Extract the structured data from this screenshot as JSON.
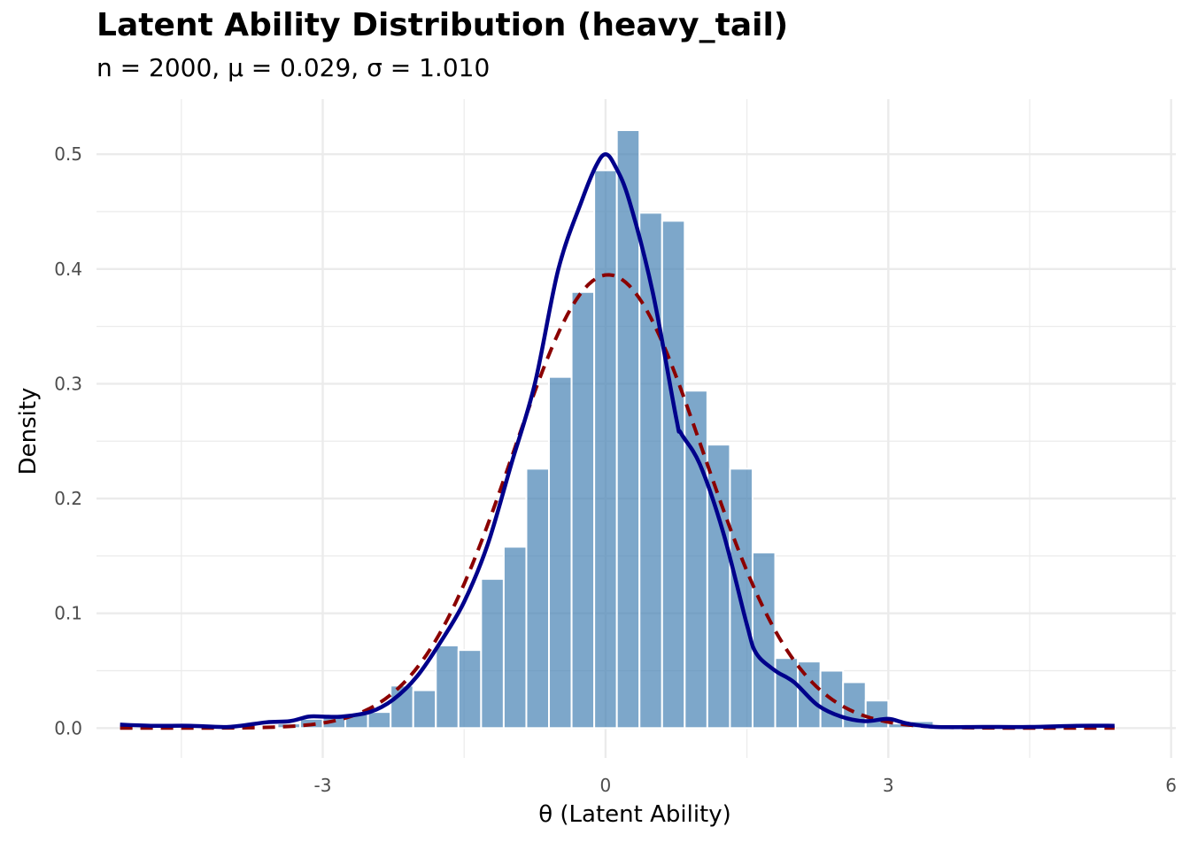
{
  "chart_data": {
    "type": "bar",
    "title": "Latent Ability Distribution (heavy_tail)",
    "subtitle": "n = 2000, μ = 0.029, σ = 1.010",
    "xlabel": "θ (Latent Ability)",
    "ylabel": "Density",
    "xlim": [
      -5.4,
      6.05
    ],
    "ylim": [
      -0.026,
      0.548
    ],
    "x_ticks": [
      -3,
      0,
      3,
      6
    ],
    "y_ticks": [
      0.0,
      0.1,
      0.2,
      0.3,
      0.4,
      0.5
    ],
    "x_tick_labels": [
      "-3",
      "0",
      "3",
      "6"
    ],
    "y_tick_labels": [
      "0.0",
      "0.1",
      "0.2",
      "0.3",
      "0.4",
      "0.5"
    ],
    "grid": true,
    "legend": "none",
    "colors": {
      "bars": "#4682B4",
      "density": "#00008B",
      "normal": "#8B0000",
      "grid": "#ebebeb"
    },
    "histogram": {
      "bin_width": 0.24,
      "bin_centers": [
        -4.8,
        -4.56,
        -4.32,
        -4.08,
        -3.84,
        -3.6,
        -3.36,
        -3.12,
        -2.88,
        -2.64,
        -2.4,
        -2.16,
        -1.92,
        -1.68,
        -1.44,
        -1.2,
        -0.96,
        -0.72,
        -0.48,
        -0.24,
        0.0,
        0.24,
        0.48,
        0.72,
        0.96,
        1.2,
        1.44,
        1.68,
        1.92,
        2.16,
        2.4,
        2.64,
        2.88,
        3.12,
        3.36,
        3.6,
        3.84,
        4.08,
        4.32,
        4.56,
        4.8,
        5.04,
        5.28
      ],
      "density": [
        0.001,
        0.0,
        0.0,
        0.0,
        0.0,
        0.0,
        0.004,
        0.008,
        0.01,
        0.012,
        0.014,
        0.037,
        0.033,
        0.072,
        0.068,
        0.13,
        0.158,
        0.226,
        0.306,
        0.38,
        0.486,
        0.521,
        0.449,
        0.442,
        0.294,
        0.247,
        0.226,
        0.153,
        0.061,
        0.058,
        0.05,
        0.04,
        0.024,
        0.004,
        0.006,
        0.002,
        0.001,
        0.0,
        0.0,
        0.001,
        0.0,
        0.001,
        0.001
      ]
    },
    "series": [
      {
        "kind": "kernel_density",
        "x": [
          -5.15,
          -4.8,
          -4.4,
          -4.0,
          -3.6,
          -3.35,
          -3.15,
          -3.0,
          -2.8,
          -2.5,
          -2.25,
          -2.0,
          -1.75,
          -1.5,
          -1.25,
          -1.0,
          -0.75,
          -0.5,
          -0.25,
          -0.1,
          0.0,
          0.1,
          0.25,
          0.5,
          0.75,
          0.8,
          1.0,
          1.25,
          1.5,
          1.6,
          1.8,
          2.0,
          2.25,
          2.5,
          2.75,
          3.0,
          3.2,
          3.5,
          4.0,
          4.5,
          5.0,
          5.4
        ],
        "y": [
          0.003,
          0.002,
          0.002,
          0.001,
          0.005,
          0.006,
          0.01,
          0.01,
          0.01,
          0.014,
          0.025,
          0.045,
          0.075,
          0.11,
          0.16,
          0.23,
          0.3,
          0.4,
          0.46,
          0.49,
          0.5,
          0.49,
          0.46,
          0.38,
          0.27,
          0.257,
          0.23,
          0.17,
          0.09,
          0.065,
          0.05,
          0.04,
          0.02,
          0.01,
          0.006,
          0.008,
          0.004,
          0.001,
          0.001,
          0.001,
          0.002,
          0.002
        ]
      },
      {
        "kind": "normal_reference",
        "mean": 0.029,
        "sd": 1.01,
        "x_range": [
          -5.15,
          5.4
        ]
      }
    ]
  }
}
